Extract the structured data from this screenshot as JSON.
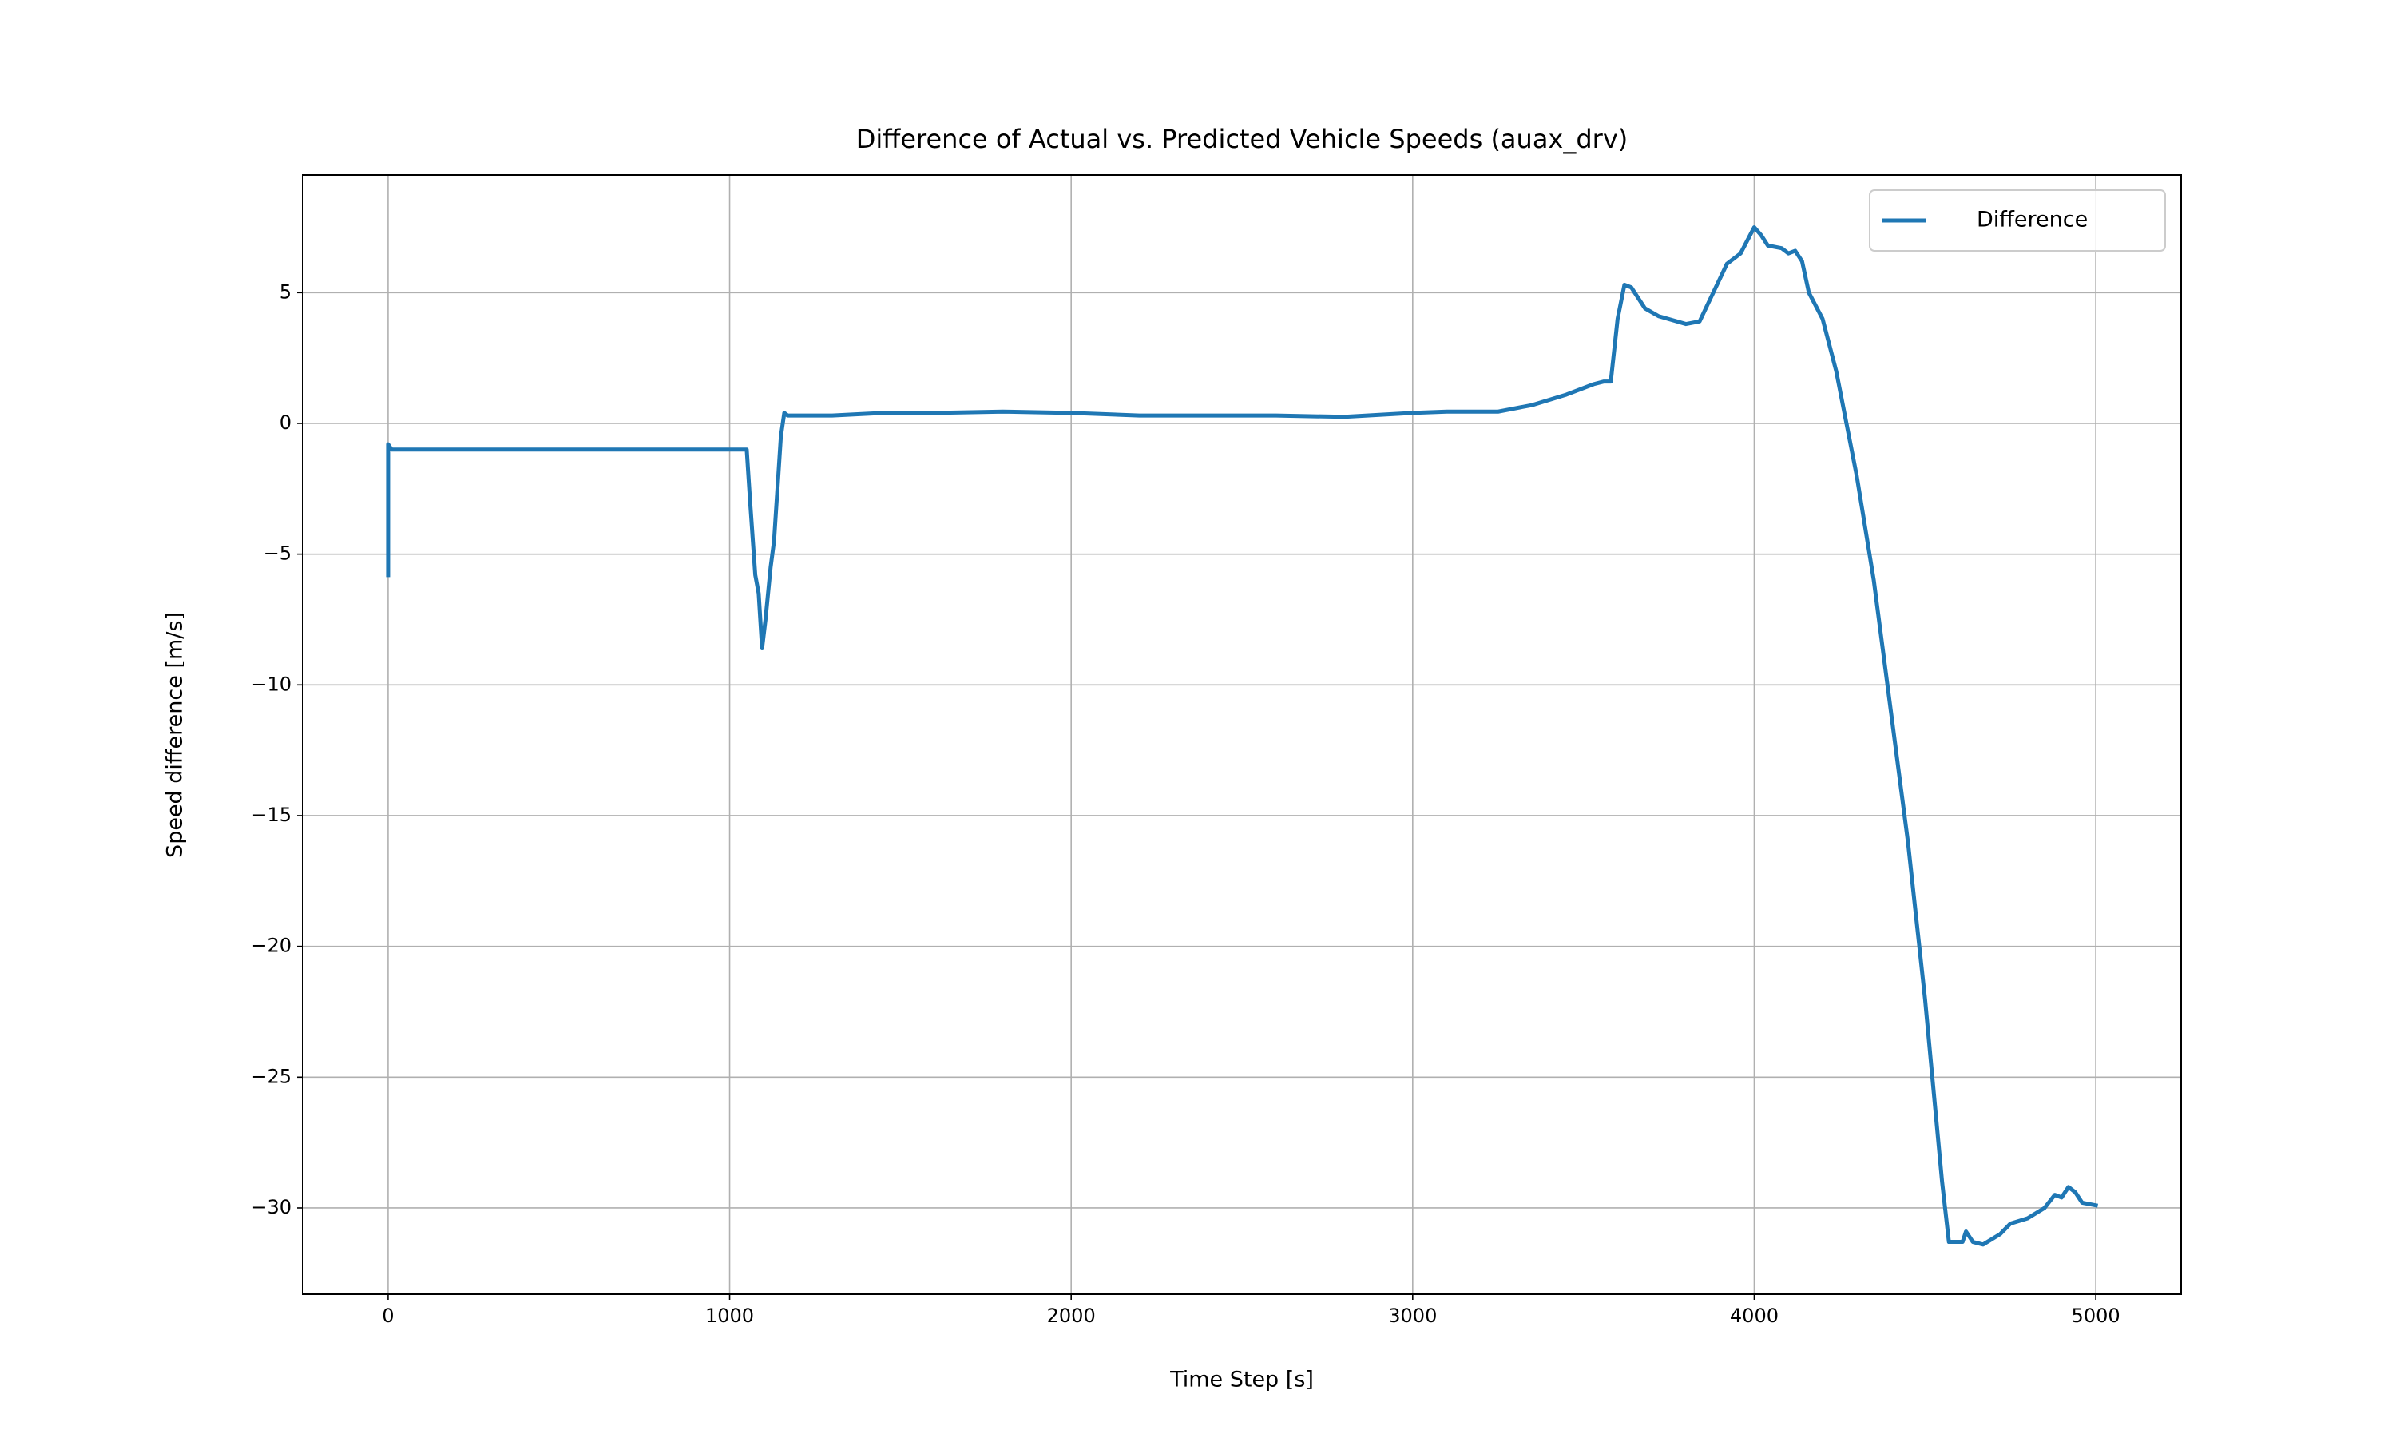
{
  "chart_data": {
    "type": "line",
    "title": "Difference of Actual vs. Predicted Vehicle Speeds (auax_drv)",
    "x_label": "Time Step [s]",
    "y_label": "Speed difference [m/s]",
    "x": [
      0,
      0,
      10,
      1050,
      1060,
      1075,
      1085,
      1095,
      1105,
      1120,
      1130,
      1150,
      1160,
      1170,
      1300,
      1450,
      1600,
      1800,
      2000,
      2200,
      2400,
      2600,
      2800,
      3000,
      3100,
      3250,
      3350,
      3450,
      3530,
      3560,
      3580,
      3600,
      3620,
      3640,
      3680,
      3720,
      3800,
      3840,
      3880,
      3920,
      3960,
      3980,
      4000,
      4020,
      4040,
      4080,
      4100,
      4120,
      4140,
      4160,
      4200,
      4240,
      4300,
      4350,
      4400,
      4450,
      4500,
      4550,
      4570,
      4610,
      4620,
      4640,
      4670,
      4720,
      4750,
      4800,
      4850,
      4880,
      4900,
      4920,
      4940,
      4960,
      5000
    ],
    "series": [
      {
        "name": "Difference",
        "color": "#1f77b4",
        "values": [
          -5.8,
          -0.8,
          -1.0,
          -1.0,
          -3.0,
          -5.8,
          -6.5,
          -8.6,
          -7.5,
          -5.5,
          -4.5,
          -0.5,
          0.4,
          0.3,
          0.3,
          0.4,
          0.4,
          0.45,
          0.4,
          0.3,
          0.3,
          0.3,
          0.25,
          0.4,
          0.45,
          0.45,
          0.7,
          1.1,
          1.5,
          1.6,
          1.6,
          4.0,
          5.3,
          5.2,
          4.4,
          4.1,
          3.8,
          3.9,
          5.0,
          6.1,
          6.5,
          7.0,
          7.5,
          7.2,
          6.8,
          6.7,
          6.5,
          6.6,
          6.2,
          5.0,
          4.0,
          2.0,
          -2.0,
          -6.0,
          -11.0,
          -16.0,
          -22.0,
          -29.0,
          -31.3,
          -31.3,
          -30.9,
          -31.3,
          -31.4,
          -31.0,
          -30.6,
          -30.4,
          -30.0,
          -29.5,
          -29.6,
          -29.2,
          -29.4,
          -29.8,
          -29.9
        ]
      }
    ],
    "xlim": [
      -250,
      5250
    ],
    "ylim": [
      -33.3,
      9.5
    ],
    "xticks": [
      0,
      1000,
      2000,
      3000,
      4000,
      5000
    ],
    "yticks": [
      {
        "value": -30,
        "label": "−30"
      },
      {
        "value": -25,
        "label": "−25"
      },
      {
        "value": -20,
        "label": "−20"
      },
      {
        "value": -15,
        "label": "−15"
      },
      {
        "value": -10,
        "label": "−10"
      },
      {
        "value": -5,
        "label": "−5"
      },
      0,
      5
    ],
    "grid": true,
    "legend": "upper right"
  }
}
